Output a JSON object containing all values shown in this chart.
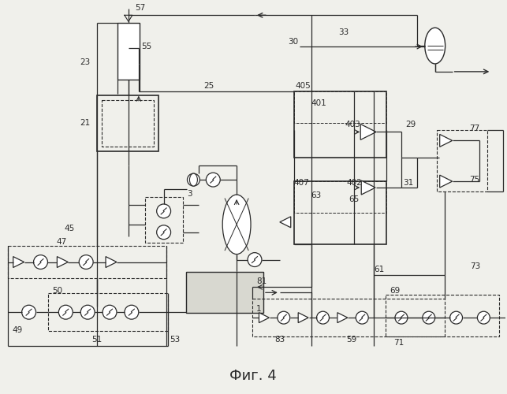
{
  "title": "Фиг. 4",
  "bg_color": "#f0f0eb",
  "line_color": "#2a2a2a",
  "label_color": "#1a1a1a"
}
